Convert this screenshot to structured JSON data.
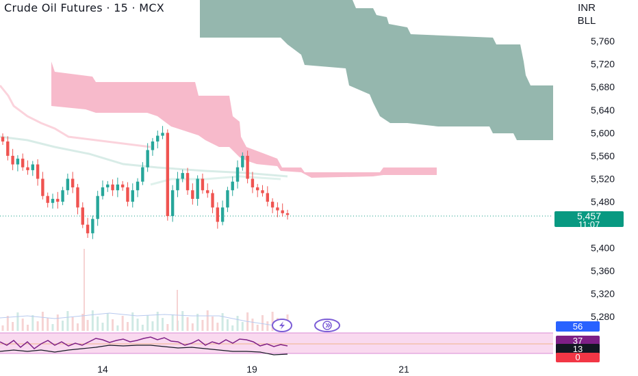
{
  "header": {
    "title": "Crude Oil Futures · 15 · MCX",
    "currency": "INR",
    "unit": "BLL"
  },
  "colors": {
    "up": "#26a69a",
    "down": "#ef5350",
    "cloud_bear": "#f7b6c8",
    "cloud_bull": "#8fb3aa",
    "price_tag": "#089981",
    "rsi_line": "#7e1f86",
    "rsi_band": "#f9d9ef"
  },
  "chart_data": {
    "type": "candlestick",
    "title": "Crude Oil Futures · 15 · MCX",
    "y_ticks": [
      5760,
      5720,
      5680,
      5640,
      5600,
      5560,
      5520,
      5480,
      5400,
      5360,
      5320,
      5280
    ],
    "x_ticks": [
      "14",
      "19",
      "21"
    ],
    "last_price": "5,457",
    "countdown": "11:07",
    "price_close_series": [
      5585,
      5560,
      5545,
      5555,
      5540,
      5535,
      5545,
      5520,
      5490,
      5478,
      5485,
      5480,
      5500,
      5520,
      5505,
      5470,
      5440,
      5425,
      5450,
      5490,
      5505,
      5510,
      5500,
      5510,
      5505,
      5480,
      5500,
      5515,
      5540,
      5570,
      5585,
      5595,
      5600,
      5455,
      5500,
      5520,
      5530,
      5500,
      5485,
      5520,
      5500,
      5495,
      5470,
      5445,
      5470,
      5500,
      5515,
      5540,
      5560,
      5520,
      5505,
      5500,
      5495,
      5480,
      5470,
      5465,
      5460,
      5457
    ],
    "indicator_tags": {
      "volume": "56",
      "rsi_value": "37",
      "rsi_signal": "13",
      "zero": "0"
    },
    "icons": [
      "lightning-icon",
      "chevrons-icon"
    ]
  }
}
